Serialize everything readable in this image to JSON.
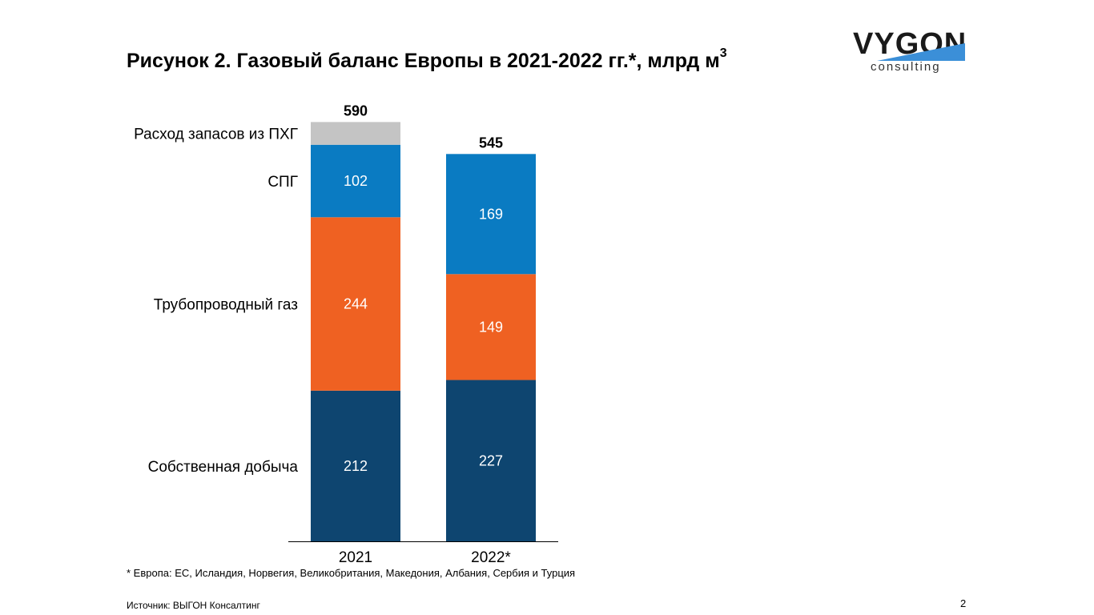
{
  "title": "Рисунок 2. Газовый баланс Европы в 2021-2022 гг.*, млрд м",
  "title_sup": "3",
  "logo": {
    "word": "VYGON",
    "sub": "consulting",
    "stripe_color": "#3b8fd8"
  },
  "footnote": "* Европа: ЕС, Исландия, Норвегия, Великобритания, Македония, Албания, Сербия и Турция",
  "source": "Источник: ВЫГОН Консалтинг",
  "page_number": "2",
  "chart_data": {
    "type": "bar",
    "stacked": true,
    "categories": [
      "2021",
      "2022*"
    ],
    "totals": [
      590,
      545
    ],
    "series": [
      {
        "name": "Собственная добыча",
        "values": [
          212,
          227
        ],
        "color": "#0e4570",
        "show_labels": true
      },
      {
        "name": "Трубопроводный газ",
        "values": [
          244,
          149
        ],
        "color": "#ef6122",
        "show_labels": true
      },
      {
        "name": "СПГ",
        "values": [
          102,
          169
        ],
        "color": "#0a7bc2",
        "show_labels": true
      },
      {
        "name": "Расход запасов из ПХГ",
        "values": [
          32,
          0
        ],
        "color": "#c4c4c4",
        "show_labels": false
      }
    ],
    "ylim": [
      0,
      600
    ],
    "grid": false,
    "legend": "left, aligned with 2021 segments"
  }
}
